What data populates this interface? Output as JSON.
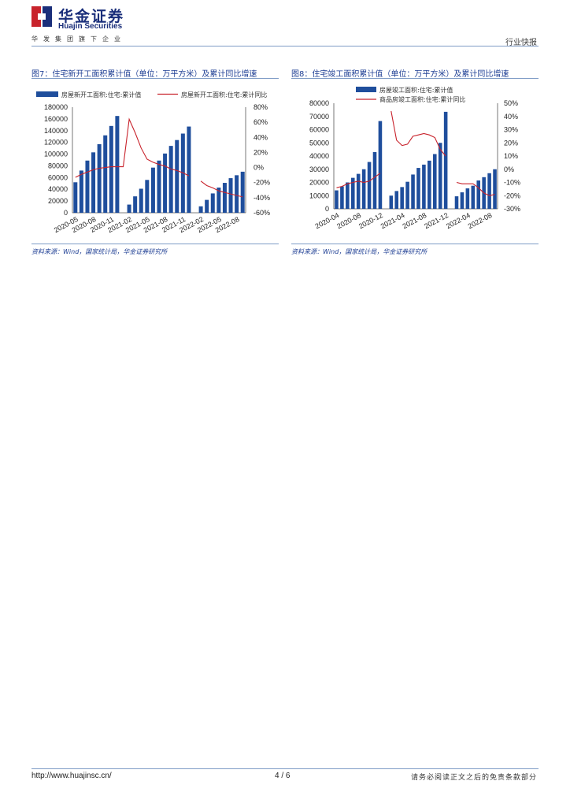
{
  "header": {
    "brand_cn": "华金证券",
    "brand_en": "Huajin Securities",
    "tagline": "华发集团旗下企业",
    "doc_type": "行业快报"
  },
  "figures": [
    {
      "title": "图7：住宅新开工面积累计值（单位：万平方米）及累计同比增速",
      "source": "资料来源：Wind，国家统计局，华金证券研究所"
    },
    {
      "title": "图8：住宅竣工面积累计值（单位：万平方米）及累计同比增速",
      "source": "资料来源：Wind，国家统计局，华金证券研究所"
    }
  ],
  "chart_data": [
    {
      "type": "bar",
      "legend": [
        "房屋新开工面积:住宅:累计值",
        "房屋新开工面积:住宅:累计同比"
      ],
      "colors": {
        "bar": "#1f4e9c",
        "line": "#c8232c"
      },
      "y_left": {
        "min": 0,
        "max": 180000,
        "step": 20000,
        "ticks": [
          "0",
          "20000",
          "40000",
          "60000",
          "80000",
          "100000",
          "120000",
          "140000",
          "160000",
          "180000"
        ]
      },
      "y_right": {
        "min": -60,
        "max": 80,
        "step": 20,
        "ticks": [
          "-60%",
          "-40%",
          "-20%",
          "0%",
          "20%",
          "40%",
          "60%",
          "80%"
        ]
      },
      "x_labels": [
        "2020-05",
        "2020-08",
        "2020-11",
        "2021-02",
        "2021-05",
        "2021-08",
        "2021-11",
        "2022-02",
        "2022-05",
        "2022-08"
      ],
      "x_label_index": [
        0,
        3,
        6,
        9,
        12,
        15,
        18,
        21,
        24,
        27
      ],
      "values": [
        52000,
        72000,
        89000,
        103000,
        117000,
        132000,
        148000,
        165000,
        null,
        14000,
        28000,
        41000,
        56000,
        77000,
        89000,
        101000,
        114000,
        124000,
        135000,
        147000,
        null,
        11000,
        22000,
        33000,
        43000,
        51000,
        59000,
        64000,
        70000
      ],
      "growth": [
        -13,
        -9,
        -6,
        -3,
        -1,
        0,
        1,
        1,
        1,
        64,
        46,
        26,
        11,
        7,
        4,
        2,
        -2,
        -4,
        -7,
        -11,
        null,
        -18,
        -24,
        -27,
        -31,
        -33,
        -35,
        -37,
        -39
      ]
    },
    {
      "type": "bar",
      "legend": [
        "房屋竣工面积:住宅:累计值",
        "商品房竣工面积:住宅:累计同比"
      ],
      "colors": {
        "bar": "#1f4e9c",
        "line": "#c8232c"
      },
      "y_left": {
        "min": 0,
        "max": 80000,
        "step": 10000,
        "ticks": [
          "0",
          "10000",
          "20000",
          "30000",
          "40000",
          "50000",
          "60000",
          "70000",
          "80000"
        ]
      },
      "y_right": {
        "min": -30,
        "max": 50,
        "step": 10,
        "ticks": [
          "-30%",
          "-20%",
          "-10%",
          "0%",
          "10%",
          "20%",
          "30%",
          "40%",
          "50%"
        ]
      },
      "x_labels": [
        "2020-04",
        "2020-08",
        "2020-12",
        "2021-04",
        "2021-08",
        "2021-12",
        "2022-04",
        "2022-08"
      ],
      "x_label_index": [
        0,
        4,
        8,
        12,
        16,
        20,
        24,
        28
      ],
      "values": [
        14000,
        17000,
        20000,
        23500,
        26500,
        30000,
        35500,
        43000,
        66500,
        null,
        10000,
        13500,
        16500,
        20500,
        26000,
        31000,
        33500,
        36500,
        41500,
        50000,
        73500,
        null,
        9500,
        12500,
        15500,
        17500,
        21500,
        24000,
        27000,
        30000
      ],
      "growth": [
        -14,
        -13,
        -11,
        -10,
        -9,
        -10,
        -9,
        -6,
        -3,
        null,
        44,
        22,
        18,
        19,
        25,
        26,
        27,
        26,
        24,
        15,
        10,
        null,
        -10,
        -11,
        -11,
        -11,
        -14,
        -18,
        -20,
        -19
      ]
    }
  ],
  "footer": {
    "url": "http://www.huajinsc.cn/",
    "page": "4 / 6",
    "note": "请务必阅读正文之后的免责条款部分"
  }
}
